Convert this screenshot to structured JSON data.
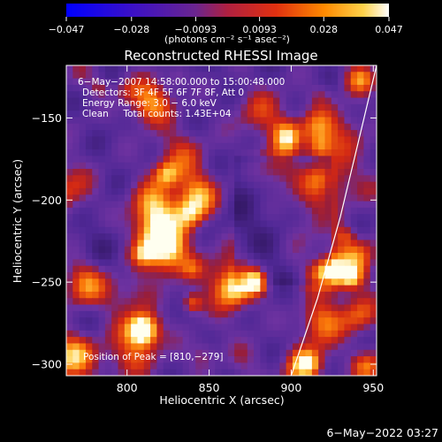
{
  "colorbar": {
    "tick_labels": [
      "−0.047",
      "−0.028",
      "−0.0093",
      "0.0093",
      "0.028",
      "0.047"
    ],
    "tick_values": [
      -0.047,
      -0.028,
      -0.0093,
      0.0093,
      0.028,
      0.047
    ],
    "range": [
      -0.047,
      0.047
    ],
    "unit_label": "(photons cm⁻² s⁻¹ asec⁻²)"
  },
  "chart_data": {
    "type": "heatmap",
    "title": "Reconstructed RHESSI Image",
    "xlabel": "Heliocentric X (arcsec)",
    "ylabel": "Heliocentric Y (arcsec)",
    "xlim": [
      763,
      952
    ],
    "ylim": [
      -307,
      -118
    ],
    "x_ticks": [
      800,
      850,
      900,
      950
    ],
    "y_ticks": [
      -150,
      -200,
      -250,
      -300
    ],
    "x_tick_labels": [
      "800",
      "850",
      "900",
      "950"
    ],
    "y_tick_labels": [
      "−150",
      "−200",
      "−250",
      "−300"
    ],
    "info_lines": [
      "6−May−2007 14:58:00.000 to 15:00:48.000",
      "Detectors: 3F 4F 5F 6F 7F 8F, Att 0",
      "Energy Range: 3.0 − 6.0 keV",
      "Clean     Total counts: 1.43E+04"
    ],
    "peak_label": "Position of Peak = [810,−279]",
    "peak": [
      810,
      -279
    ],
    "limb_curve": [
      [
        900,
        -307
      ],
      [
        916,
        -260
      ],
      [
        930,
        -210
      ],
      [
        942,
        -160
      ],
      [
        952,
        -118
      ]
    ]
  },
  "timestamp": "6−May−2022 03:27"
}
